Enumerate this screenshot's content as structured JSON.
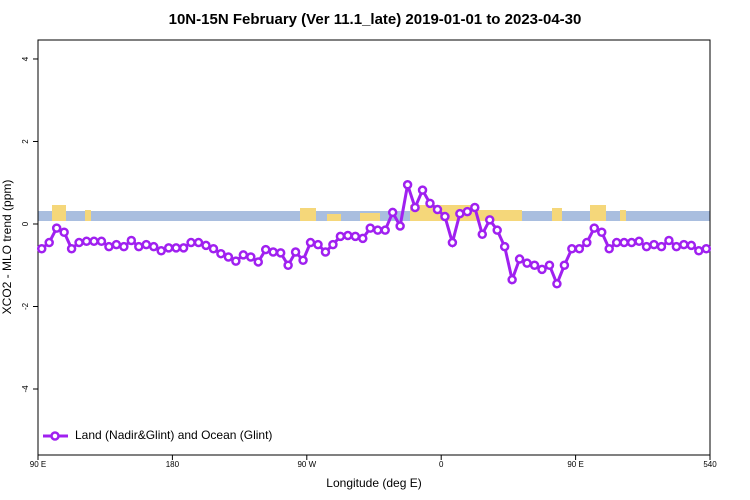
{
  "chart_data": {
    "type": "line",
    "title": "10N-15N February (Ver 11.1_late)   2019-01-01 to 2023-04-30",
    "x_label": "Longitude (deg E)",
    "y_label": "XCO2 - MLO trend (ppm)",
    "xlim": [
      90,
      540
    ],
    "ylim": [
      -5.6,
      4.46
    ],
    "xticks": [
      {
        "value": 90,
        "label": "90 E"
      },
      180,
      {
        "value": 270,
        "label": "90 W"
      },
      {
        "value": 360,
        "label": "0"
      },
      {
        "value": 450,
        "label": "90 E"
      },
      540
    ],
    "yticks": [
      -4,
      -2,
      0,
      2,
      4
    ],
    "legend": "bottom-left",
    "x": [
      92.5,
      97.5,
      102.5,
      107.5,
      112.5,
      117.5,
      122.5,
      127.5,
      132.5,
      137.5,
      142.5,
      147.5,
      152.5,
      157.5,
      162.5,
      167.5,
      172.5,
      177.5,
      182.5,
      187.5,
      192.5,
      197.5,
      202.5,
      207.5,
      212.5,
      217.5,
      222.5,
      227.5,
      232.5,
      237.5,
      242.5,
      247.5,
      252.5,
      257.5,
      262.5,
      267.5,
      272.5,
      277.5,
      282.5,
      287.5,
      292.5,
      297.5,
      302.5,
      307.5,
      312.5,
      317.5,
      322.5,
      327.5,
      332.5,
      337.5,
      342.5,
      347.5,
      352.5,
      357.5,
      362.5,
      367.5,
      372.5,
      377.5,
      382.5,
      387.5,
      392.5,
      397.5,
      402.5,
      407.5,
      412.5,
      417.5,
      422.5,
      427.5,
      432.5,
      437.5,
      442.5,
      447.5,
      452.5,
      457.5,
      462.5,
      467.5,
      472.5,
      477.5,
      482.5,
      487.5,
      492.5,
      497.5,
      502.5,
      507.5,
      512.5,
      517.5,
      522.5,
      527.5,
      532.5,
      537.5
    ],
    "series": [
      {
        "name": "Land (Nadir&Glint) and Ocean (Glint)",
        "color": "#a020f0",
        "values": [
          -0.6,
          -0.45,
          -0.1,
          -0.2,
          -0.6,
          -0.45,
          -0.42,
          -0.42,
          -0.42,
          -0.55,
          -0.5,
          -0.55,
          -0.4,
          -0.55,
          -0.5,
          -0.55,
          -0.65,
          -0.58,
          -0.58,
          -0.58,
          -0.45,
          -0.45,
          -0.52,
          -0.6,
          -0.72,
          -0.8,
          -0.9,
          -0.75,
          -0.8,
          -0.92,
          -0.62,
          -0.68,
          -0.7,
          -1.0,
          -0.68,
          -0.88,
          -0.45,
          -0.5,
          -0.68,
          -0.5,
          -0.3,
          -0.28,
          -0.3,
          -0.35,
          -0.1,
          -0.15,
          -0.15,
          0.28,
          -0.05,
          0.95,
          0.4,
          0.82,
          0.5,
          0.35,
          0.18,
          -0.45,
          0.25,
          0.3,
          0.4,
          -0.25,
          0.1,
          -0.15,
          -0.55,
          -1.35,
          -0.85,
          -0.95,
          -1.0,
          -1.1,
          -1.0,
          -1.45,
          -1.0,
          -0.6,
          -0.6,
          -0.45,
          -0.1,
          -0.2,
          -0.6,
          -0.45,
          -0.45,
          -0.45,
          -0.42,
          -0.55,
          -0.5,
          -0.55,
          -0.4,
          -0.55,
          -0.5,
          -0.52,
          -0.65,
          -0.6
        ]
      }
    ]
  }
}
